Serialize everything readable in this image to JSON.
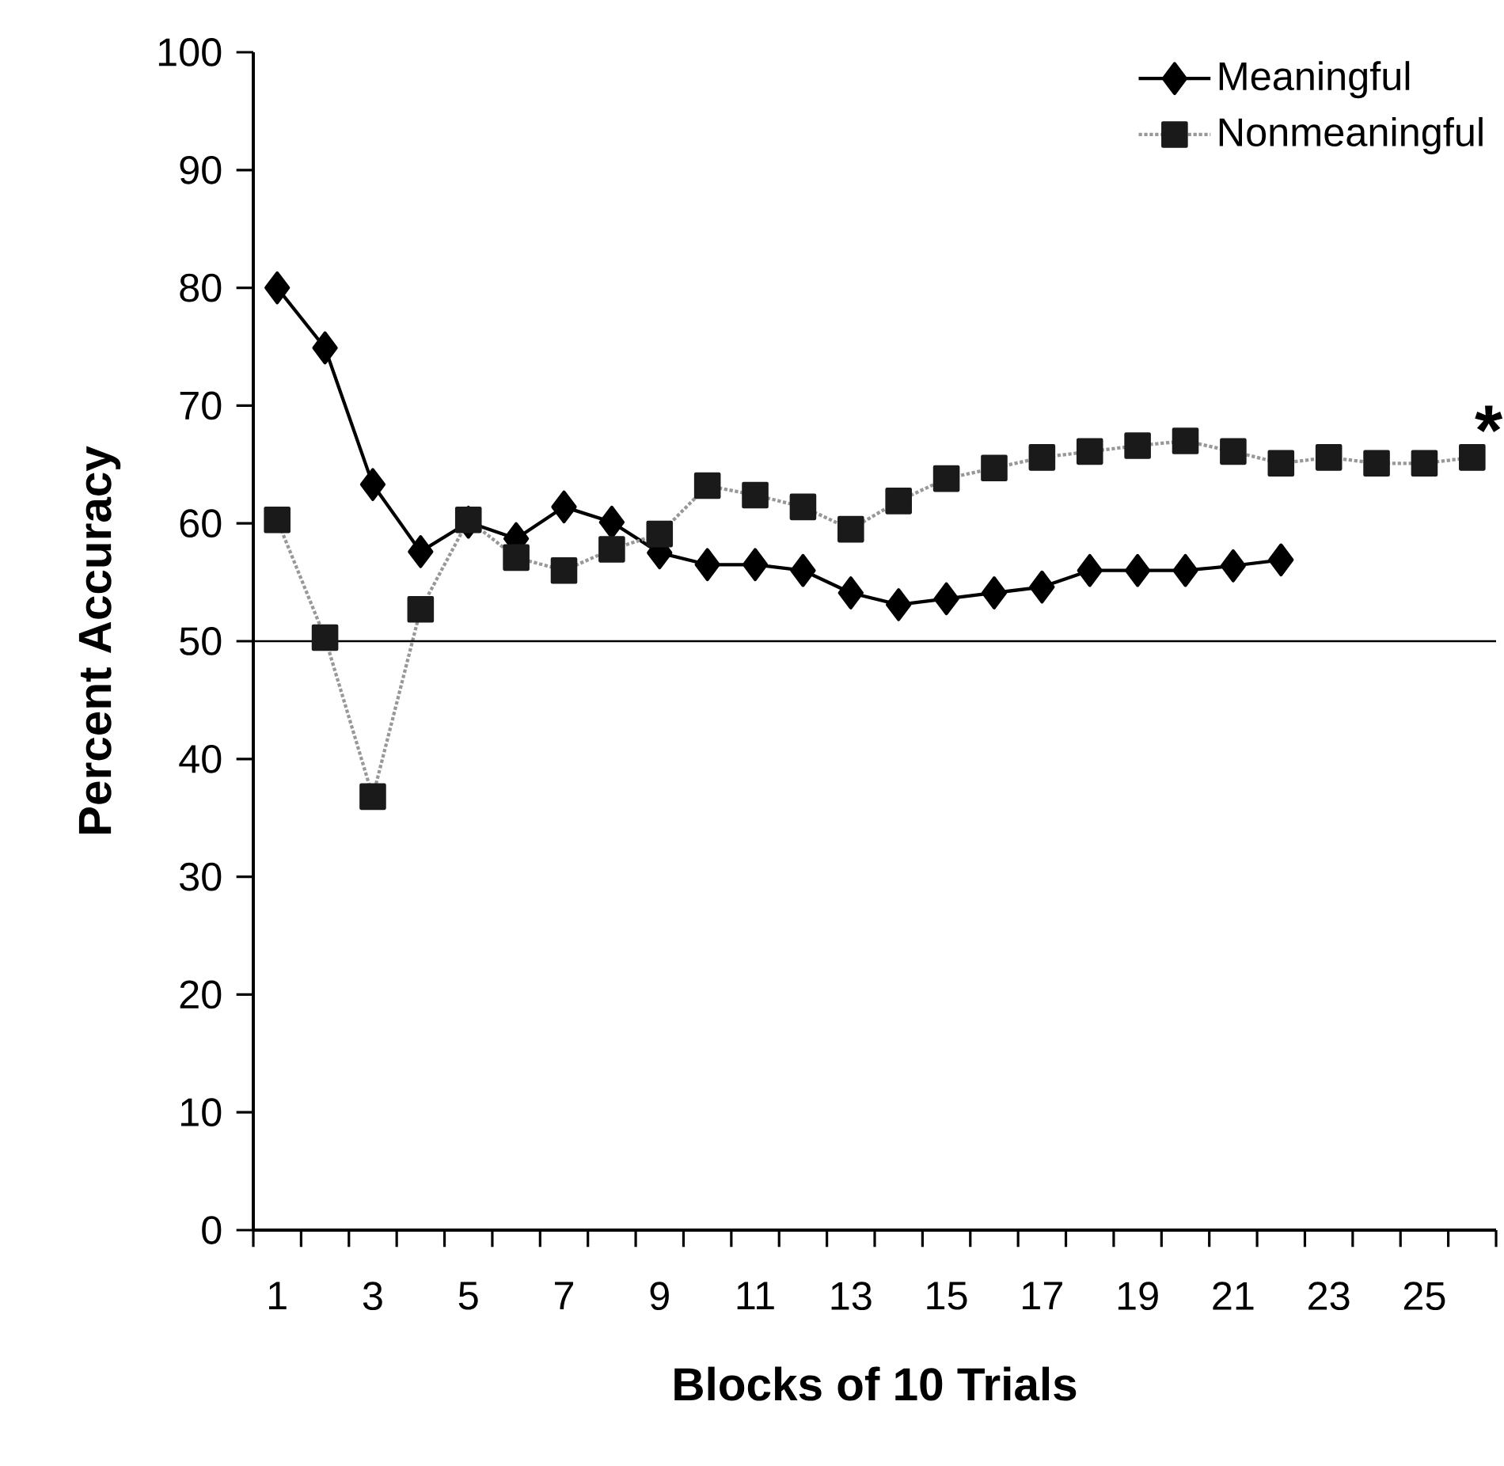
{
  "chart_data": {
    "type": "line",
    "xlabel": "Blocks of 10 Trials",
    "ylabel": "Percent Accuracy",
    "categories": [
      "1",
      null,
      "3",
      null,
      "5",
      null,
      "7",
      null,
      "9",
      null,
      "11",
      null,
      "13",
      null,
      "15",
      null,
      "17",
      null,
      "19",
      null,
      "21",
      null,
      "23",
      null,
      "25",
      null
    ],
    "series": [
      {
        "name": "Meaningful",
        "color": "#000000",
        "marker": "diamond",
        "line_style": "solid",
        "values": [
          80.0,
          74.9,
          63.3,
          57.6,
          60.1,
          58.7,
          61.4,
          60.1,
          57.5,
          56.5,
          56.5,
          56.0,
          54.1,
          53.1,
          53.6,
          54.1,
          54.6,
          56.0,
          56.0,
          56.0,
          56.4,
          56.9,
          null,
          null,
          null,
          null
        ]
      },
      {
        "name": "Nonmeaningful",
        "color": "#1a1a1a",
        "marker": "square",
        "line_style": "dotted",
        "values": [
          60.3,
          50.3,
          36.8,
          52.7,
          60.3,
          57.1,
          56.0,
          57.8,
          59.1,
          63.2,
          62.4,
          61.4,
          59.5,
          61.9,
          63.8,
          64.7,
          65.6,
          66.1,
          66.6,
          67.0,
          66.1,
          65.1,
          65.6,
          65.1,
          65.1,
          65.6
        ]
      }
    ],
    "ylim": [
      0,
      100
    ],
    "yticks": [
      0,
      10,
      20,
      30,
      40,
      50,
      60,
      70,
      80,
      90,
      100
    ],
    "ref_lines": [
      {
        "axis": "y",
        "value": 50,
        "color": "#000000"
      }
    ],
    "annotations": [
      "*"
    ],
    "legend": "top right",
    "grid": false
  }
}
